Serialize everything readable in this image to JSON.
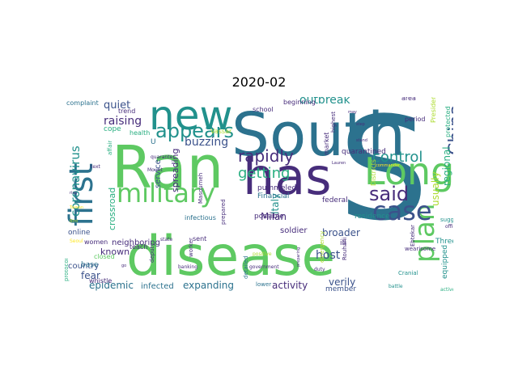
{
  "figure": {
    "title": "2020-02"
  },
  "palette": {
    "dark_purple": "#440154",
    "indigo": "#472d7b",
    "slate": "#3b528b",
    "blue": "#2c728e",
    "teal": "#21918c",
    "sea": "#28ae80",
    "green": "#5ec962",
    "lime": "#addc30",
    "yellow": "#fde725"
  },
  "words": [
    {
      "text": "S",
      "color": "#2c728e"
    },
    {
      "text": "disease",
      "color": "#5ec962"
    },
    {
      "text": "South",
      "color": "#2c728e"
    },
    {
      "text": "Ran",
      "color": "#5ec962"
    },
    {
      "text": "has",
      "color": "#472d7b"
    },
    {
      "text": "new",
      "color": "#21918c"
    },
    {
      "text": "Long",
      "color": "#5ec962"
    },
    {
      "text": "first",
      "color": "#2c728e"
    },
    {
      "text": "military",
      "color": "#5ec962"
    },
    {
      "text": "plan",
      "color": "#5ec962"
    },
    {
      "text": "case",
      "color": "#3b528b"
    },
    {
      "text": "said",
      "color": "#472d7b"
    },
    {
      "text": "appears",
      "color": "#21918c"
    },
    {
      "text": "China",
      "color": "#3b528b"
    },
    {
      "text": "control",
      "color": "#21918c"
    },
    {
      "text": "rapidly",
      "color": "#472d7b"
    },
    {
      "text": "getting",
      "color": "#28ae80"
    },
    {
      "text": "coronavirus",
      "color": "#21918c"
    },
    {
      "text": "outbreak",
      "color": "#21918c"
    },
    {
      "text": "raising",
      "color": "#472d7b"
    },
    {
      "text": "buzzing",
      "color": "#3b528b"
    },
    {
      "text": "quiet",
      "color": "#3b528b"
    },
    {
      "text": "epidemic",
      "color": "#2c728e"
    },
    {
      "text": "expanding",
      "color": "#2c728e"
    },
    {
      "text": "activity",
      "color": "#472d7b"
    },
    {
      "text": "verily",
      "color": "#3b528b"
    },
    {
      "text": "host",
      "color": "#3b528b"
    },
    {
      "text": "broader",
      "color": "#3b528b"
    },
    {
      "text": "Milan",
      "color": "#472d7b"
    },
    {
      "text": "regional",
      "color": "#28ae80"
    },
    {
      "text": "usually",
      "color": "#addc30"
    },
    {
      "text": "spreading",
      "color": "#472d7b"
    },
    {
      "text": "fear",
      "color": "#3b528b"
    },
    {
      "text": "known",
      "color": "#472d7b"
    },
    {
      "text": "neighboring",
      "color": "#472d7b"
    },
    {
      "text": "country",
      "color": "#3b528b"
    },
    {
      "text": "service",
      "color": "#3b528b"
    },
    {
      "text": "infected",
      "color": "#2c728e"
    },
    {
      "text": "member",
      "color": "#3b528b"
    },
    {
      "text": "crossroad",
      "color": "#28ae80"
    },
    {
      "text": "Italy",
      "color": "#21918c"
    },
    {
      "text": "soldier",
      "color": "#472d7b"
    },
    {
      "text": "quarantined",
      "color": "#472d7b"
    },
    {
      "text": "pummeled",
      "color": "#472d7b"
    },
    {
      "text": "Financial",
      "color": "#2c728e"
    },
    {
      "text": "federal",
      "color": "#472d7b"
    },
    {
      "text": "possible",
      "color": "#472d7b"
    },
    {
      "text": "residence",
      "color": "#21918c"
    },
    {
      "text": "ill",
      "color": "#472d7b"
    },
    {
      "text": "online",
      "color": "#3b528b"
    },
    {
      "text": "Three",
      "color": "#21918c"
    },
    {
      "text": "base",
      "color": "#2c728e"
    },
    {
      "text": "equipped",
      "color": "#21918c"
    },
    {
      "text": "infectious",
      "color": "#2c728e"
    },
    {
      "text": "cope",
      "color": "#28ae80"
    },
    {
      "text": "health",
      "color": "#28ae80"
    },
    {
      "text": "Vassar",
      "color": "#addc30"
    },
    {
      "text": "school",
      "color": "#472d7b"
    },
    {
      "text": "complaint",
      "color": "#2c728e"
    },
    {
      "text": "trend",
      "color": "#472d7b"
    },
    {
      "text": "beginning",
      "color": "#472d7b"
    },
    {
      "text": "area",
      "color": "#472d7b"
    },
    {
      "text": "period",
      "color": "#472d7b"
    },
    {
      "text": "market",
      "color": "#472d7b"
    },
    {
      "text": "protected",
      "color": "#28ae80"
    },
    {
      "text": "President",
      "color": "#addc30"
    },
    {
      "text": "highest",
      "color": "#472d7b"
    },
    {
      "text": "Districts",
      "color": "#addc30"
    },
    {
      "text": "women",
      "color": "#472d7b"
    },
    {
      "text": "teach",
      "color": "#472d7b"
    },
    {
      "text": "sent",
      "color": "#472d7b"
    },
    {
      "text": "whistle",
      "color": "#472d7b"
    },
    {
      "text": "closed",
      "color": "#5ec962"
    },
    {
      "text": "deputy",
      "color": "#472d7b"
    },
    {
      "text": "worker",
      "color": "#472d7b"
    },
    {
      "text": "prepared",
      "color": "#472d7b"
    },
    {
      "text": "detailed",
      "color": "#2c728e"
    },
    {
      "text": "lower",
      "color": "#2c728e"
    },
    {
      "text": "Rouhani",
      "color": "#472d7b"
    },
    {
      "text": "emergency",
      "color": "#addc30"
    },
    {
      "text": "Ebtekar",
      "color": "#472d7b"
    },
    {
      "text": "wearisome",
      "color": "#472d7b"
    },
    {
      "text": "suggest",
      "color": "#21918c"
    },
    {
      "text": "official",
      "color": "#472d7b"
    },
    {
      "text": "affair",
      "color": "#28ae80"
    },
    {
      "text": "Masoumeh",
      "color": "#472d7b"
    },
    {
      "text": "quarante",
      "color": "#472d7b"
    },
    {
      "text": "protocol",
      "color": "#28ae80"
    },
    {
      "text": "Cranial",
      "color": "#21918c"
    },
    {
      "text": "government",
      "color": "#472d7b"
    },
    {
      "text": "banking",
      "color": "#472d7b"
    },
    {
      "text": "state",
      "color": "#472d7b"
    },
    {
      "text": "duty",
      "color": "#472d7b"
    },
    {
      "text": "battle",
      "color": "#21918c"
    },
    {
      "text": "active",
      "color": "#28ae80"
    },
    {
      "text": "Seoul",
      "color": "#fde725"
    },
    {
      "text": "text",
      "color": "#472d7b"
    },
    {
      "text": "Mount",
      "color": "#472d7b"
    },
    {
      "text": "positive",
      "color": "#addc30"
    },
    {
      "text": "preparing",
      "color": "#472d7b"
    },
    {
      "text": "Taiwan",
      "color": "#fde725"
    },
    {
      "text": "Lauren",
      "color": "#472d7b"
    },
    {
      "text": "may",
      "color": "#472d7b"
    },
    {
      "text": "step",
      "color": "#472d7b"
    },
    {
      "text": "commander",
      "color": "#fde725"
    },
    {
      "text": "rise",
      "color": "#472d7b"
    },
    {
      "text": "Bird",
      "color": "#addc30"
    },
    {
      "text": "go",
      "color": "#472d7b"
    },
    {
      "text": "stand",
      "color": "#472d7b"
    },
    {
      "text": "U",
      "color": "#2c728e"
    }
  ]
}
